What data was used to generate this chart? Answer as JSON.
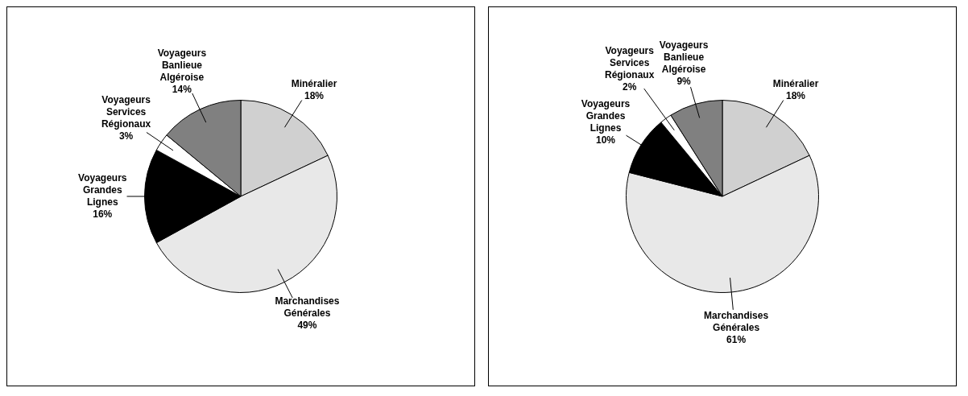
{
  "chart_data": [
    {
      "type": "pie",
      "categories": [
        "Minéralier",
        "Marchandises Générales",
        "Voyageurs Grandes Lignes",
        "Voyageurs Services Régionaux",
        "Voyageurs Banlieue Algéroise"
      ],
      "values": [
        18,
        49,
        16,
        3,
        14
      ],
      "value_labels": [
        "18%",
        "49%",
        "16%",
        "3%",
        "14%"
      ],
      "colors": [
        "#d0d0d0",
        "#e8e8e8",
        "#000000",
        "#ffffff",
        "#808080"
      ]
    },
    {
      "type": "pie",
      "categories": [
        "Minéralier",
        "Marchandises Générales",
        "Voyageurs Grandes Lignes",
        "Voyageurs Services Régionaux",
        "Voyageurs Banlieue Algéroise"
      ],
      "values": [
        18,
        61,
        10,
        2,
        9
      ],
      "value_labels": [
        "18%",
        "61%",
        "10%",
        "2%",
        "9%"
      ],
      "colors": [
        "#d0d0d0",
        "#e8e8e8",
        "#000000",
        "#ffffff",
        "#808080"
      ]
    }
  ]
}
